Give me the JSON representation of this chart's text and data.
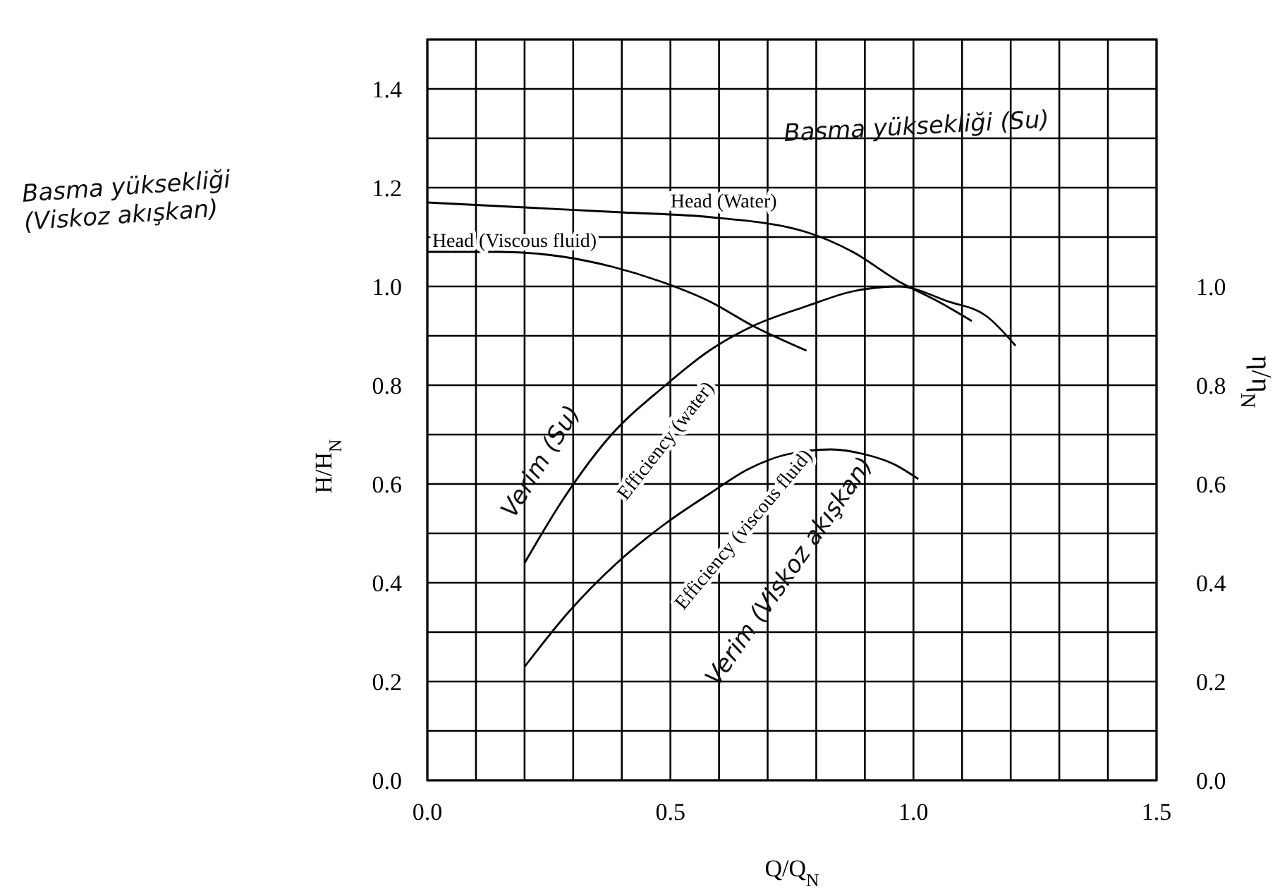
{
  "chart_data": {
    "type": "line",
    "xlabel": "Q/Q$_{N}$",
    "ylabel": "H/H$_{N}$",
    "y2label": "η/η$_{N}$",
    "xlim": [
      0,
      1.5
    ],
    "ylim": [
      0,
      1.5
    ],
    "y2lim": [
      0,
      1.5
    ],
    "xticks": [
      {
        "value": 0,
        "label": "0.0"
      },
      {
        "value": 0.1,
        "label": null
      },
      {
        "value": 0.2,
        "label": null
      },
      {
        "value": 0.3,
        "label": null
      },
      {
        "value": 0.4,
        "label": null
      },
      {
        "value": 0.5,
        "label": "0.5"
      },
      {
        "value": 0.6,
        "label": null
      },
      {
        "value": 0.7,
        "label": null
      },
      {
        "value": 0.8,
        "label": null
      },
      {
        "value": 0.9,
        "label": null
      },
      {
        "value": 1,
        "label": "1.0"
      },
      {
        "value": 1.1,
        "label": null
      },
      {
        "value": 1.2,
        "label": null
      },
      {
        "value": 1.3,
        "label": null
      },
      {
        "value": 1.4,
        "label": null
      },
      {
        "value": 1.5,
        "label": "1.5"
      }
    ],
    "yticks": [
      {
        "value": 0,
        "label": "0.0"
      },
      {
        "value": 0.1,
        "label": null
      },
      {
        "value": 0.2,
        "label": "0.2"
      },
      {
        "value": 0.3,
        "label": null
      },
      {
        "value": 0.4,
        "label": "0.4"
      },
      {
        "value": 0.5,
        "label": null
      },
      {
        "value": 0.6,
        "label": "0.6"
      },
      {
        "value": 0.7,
        "label": null
      },
      {
        "value": 0.8,
        "label": "0.8"
      },
      {
        "value": 0.9,
        "label": null
      },
      {
        "value": 1,
        "label": "1.0"
      },
      {
        "value": 1.1,
        "label": null
      },
      {
        "value": 1.2,
        "label": "1.2"
      },
      {
        "value": 1.3,
        "label": null
      },
      {
        "value": 1.4,
        "label": "1.4"
      },
      {
        "value": 1.5,
        "label": null
      }
    ],
    "y2ticks": [
      {
        "value": 0,
        "label": "0.0"
      },
      {
        "value": 0.2,
        "label": "0.2"
      },
      {
        "value": 0.4,
        "label": "0.4"
      },
      {
        "value": 0.6,
        "label": "0.6"
      },
      {
        "value": 0.8,
        "label": "0.8"
      },
      {
        "value": 1,
        "label": "1.0"
      }
    ],
    "grid": true,
    "series": [
      {
        "name": "Head (Water)",
        "color": "#000000",
        "x": [
          0,
          0.2,
          0.4,
          0.585,
          0.78,
          0.875,
          0.97,
          1.05,
          1.12
        ],
        "values": [
          1.17,
          1.16,
          1.15,
          1.14,
          1.11,
          1.07,
          1.01,
          0.97,
          0.93
        ]
      },
      {
        "name": "Head (Viscous fluid)",
        "color": "#000000",
        "x": [
          0,
          0.15,
          0.28,
          0.38,
          0.48,
          0.58,
          0.67,
          0.78
        ],
        "values": [
          1.07,
          1.07,
          1.06,
          1.04,
          1.01,
          0.97,
          0.92,
          0.87
        ]
      },
      {
        "name": "Efficiency (water)",
        "color": "#000000",
        "x": [
          0.2,
          0.28,
          0.37,
          0.49,
          0.58,
          0.67,
          0.78,
          0.875,
          0.97,
          1.07,
          1.15,
          1.21
        ],
        "values": [
          0.44,
          0.57,
          0.69,
          0.8,
          0.87,
          0.92,
          0.96,
          0.99,
          1.0,
          0.97,
          0.94,
          0.88
        ]
      },
      {
        "name": "Efficiency (viscous fluid)",
        "color": "#000000",
        "x": [
          0.2,
          0.29,
          0.39,
          0.49,
          0.58,
          0.66,
          0.74,
          0.83,
          0.9,
          0.96,
          1.01
        ],
        "values": [
          0.23,
          0.34,
          0.44,
          0.52,
          0.58,
          0.63,
          0.66,
          0.67,
          0.66,
          0.64,
          0.61
        ]
      }
    ],
    "annotations": [
      "Basma yüksekliği (Su)",
      "Basma yüksekliği (Viskoz akışkan)",
      "Verim (Su)",
      "Verim (Viskoz akışkan)"
    ]
  }
}
